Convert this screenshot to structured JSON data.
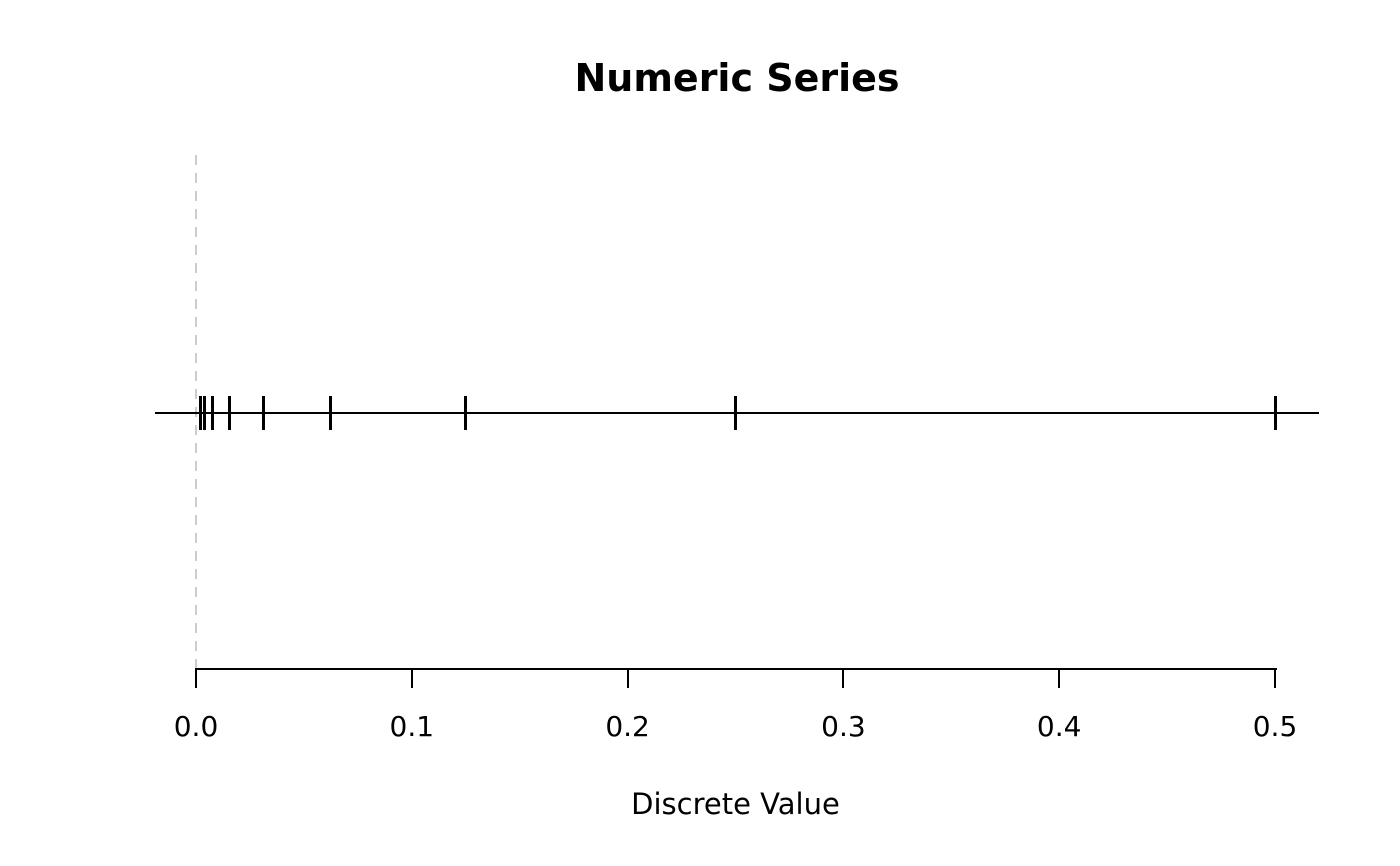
{
  "figure": {
    "title": "Numeric Series",
    "xlabel": "Discrete Value",
    "background": "#ffffff"
  },
  "chart_data": {
    "type": "scatter",
    "subtype": "rug-stripchart",
    "title": "Numeric Series",
    "xlabel": "Discrete Value",
    "ylabel": "",
    "values": [
      0.5,
      0.25,
      0.125,
      0.0625,
      0.03125,
      0.015625,
      0.0078125,
      0.00390625,
      0.001953125
    ],
    "x_axis": {
      "min": 0.0,
      "max": 0.5,
      "ticks": [
        {
          "value": 0.0,
          "label": "0.0"
        },
        {
          "value": 0.1,
          "label": "0.1"
        },
        {
          "value": 0.2,
          "label": "0.2"
        },
        {
          "value": 0.3,
          "label": "0.3"
        },
        {
          "value": 0.4,
          "label": "0.4"
        },
        {
          "value": 0.5,
          "label": "0.5"
        }
      ]
    },
    "xlim": [
      -0.019,
      0.52
    ],
    "reference_line": {
      "x": 0.0,
      "style": "dashed",
      "color": "#cccccc"
    },
    "grid": false,
    "legend": false,
    "colors": {
      "marks": "#000000",
      "axis": "#000000",
      "text": "#000000",
      "reference": "#cccccc"
    }
  }
}
